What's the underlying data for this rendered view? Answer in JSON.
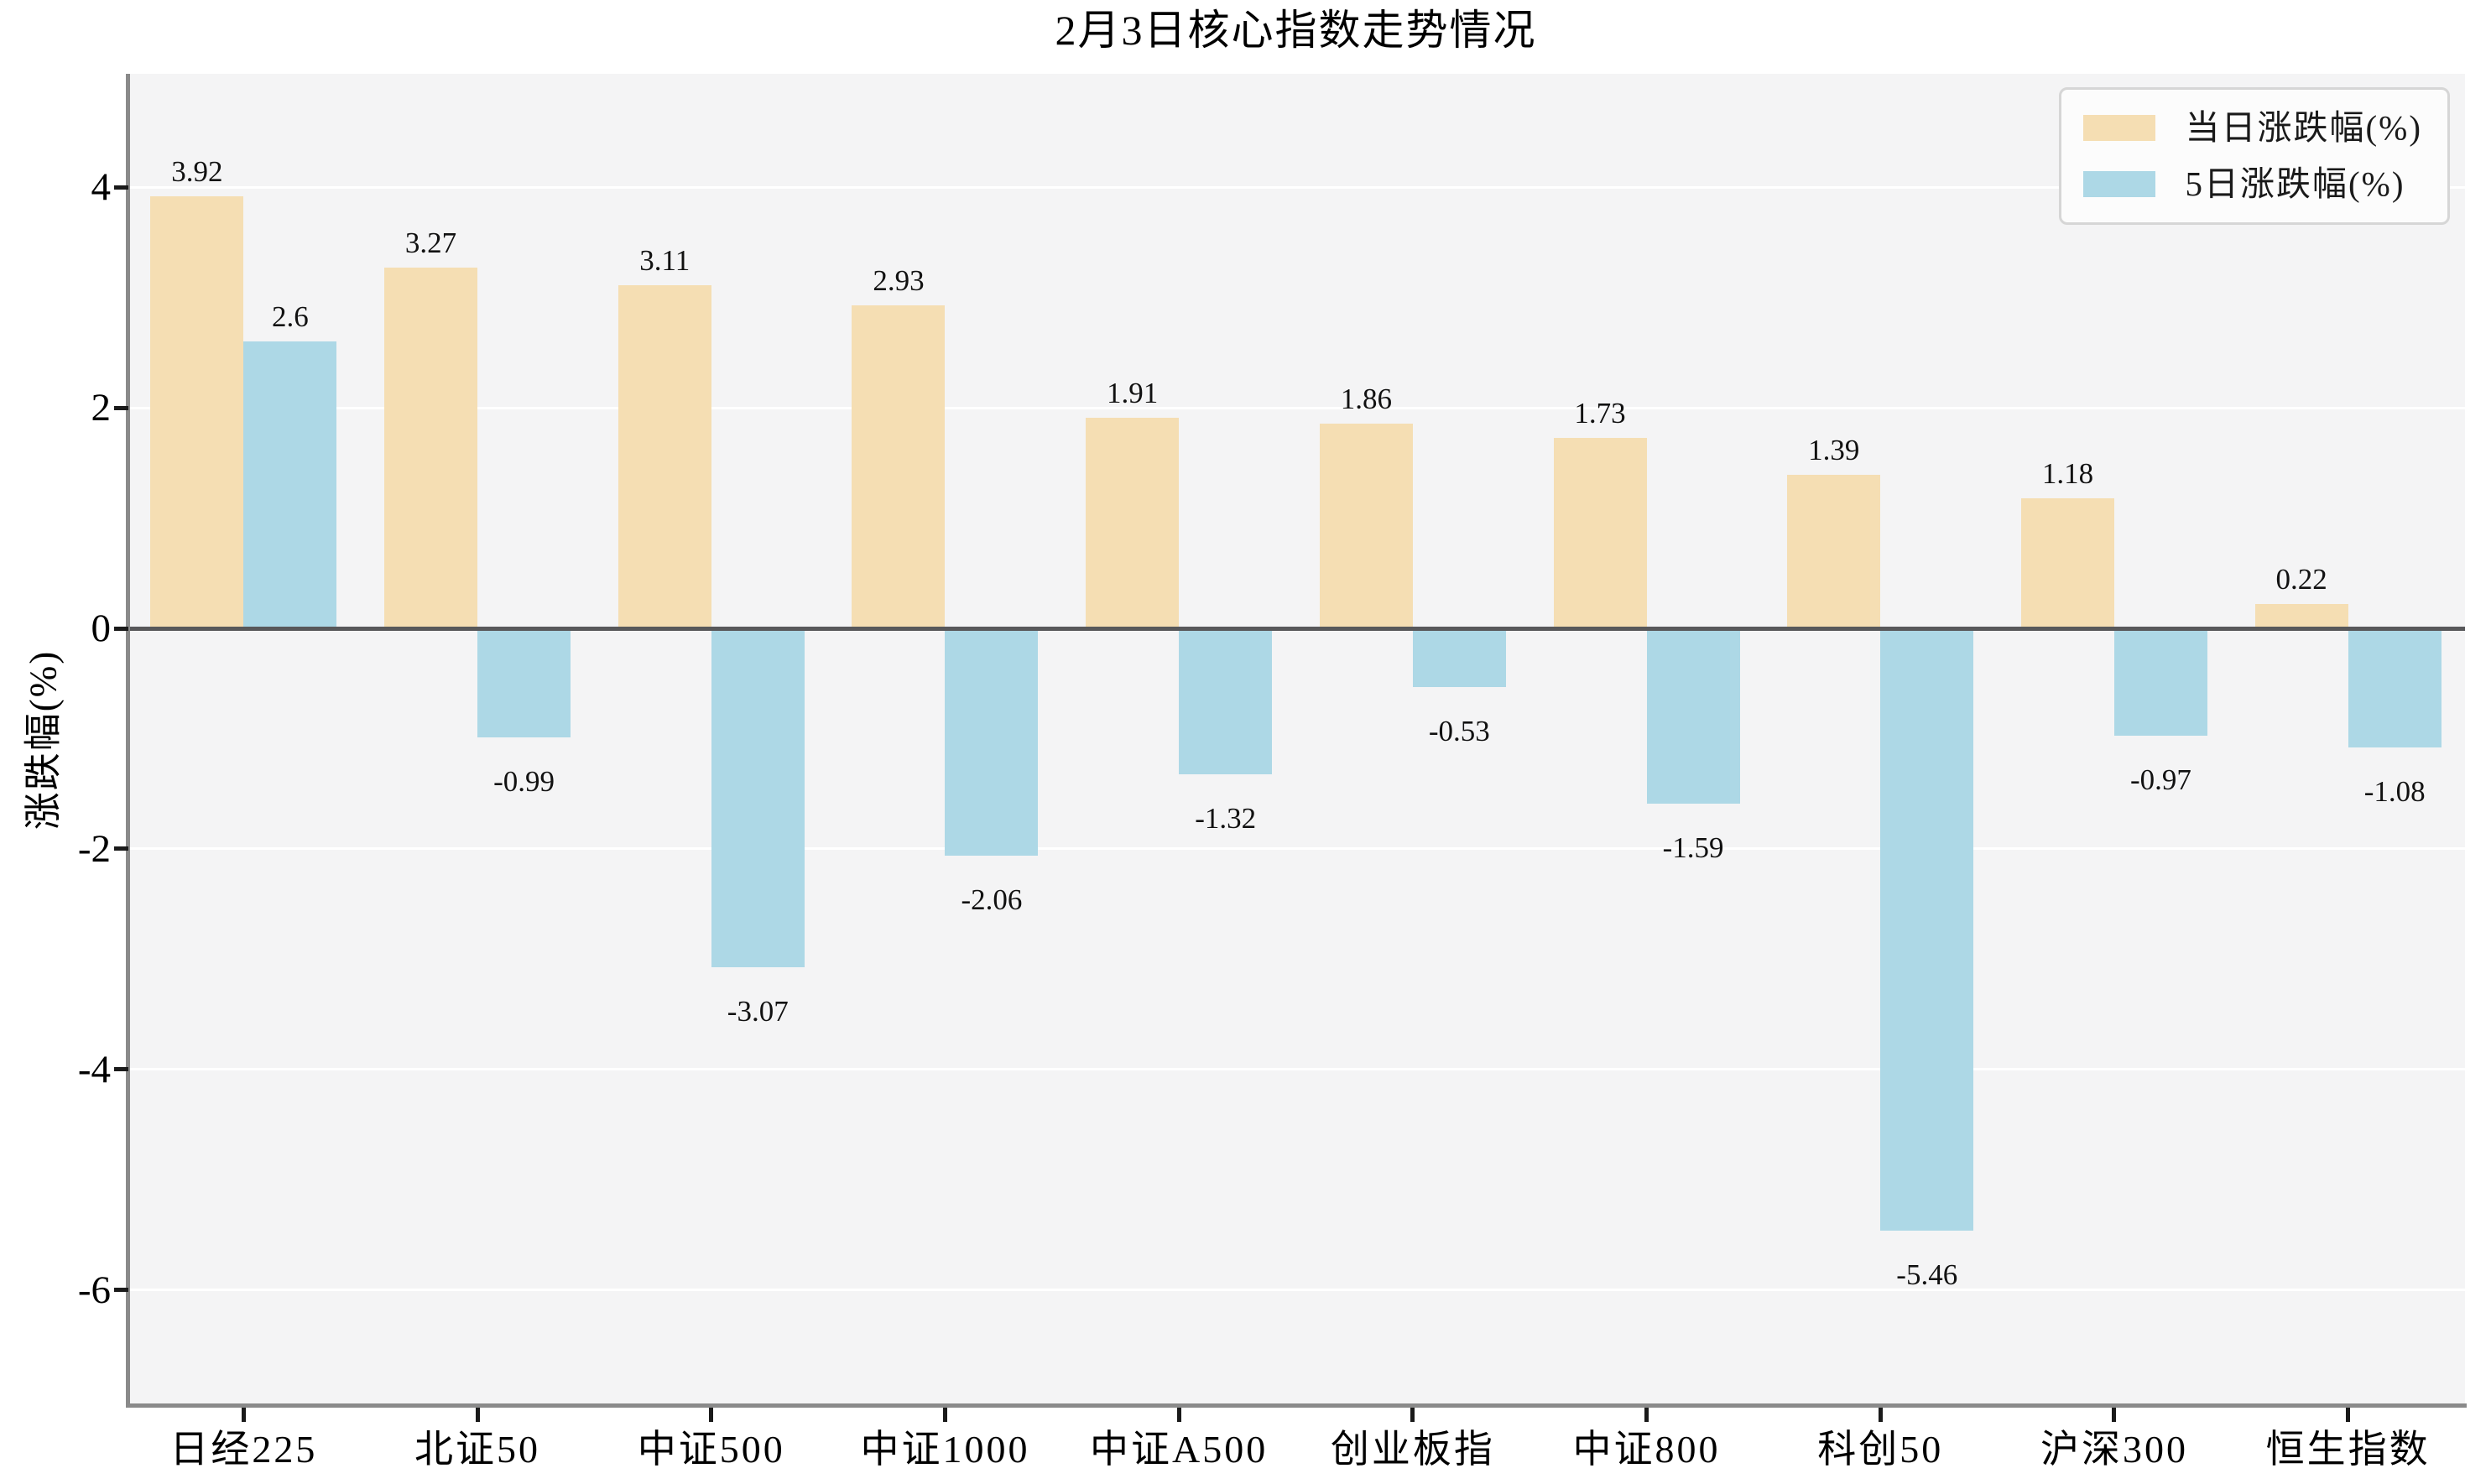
{
  "chart_title": "2月3日核心指数走势情况",
  "chart_data": {
    "type": "bar",
    "title": "2月3日核心指数走势情况",
    "categories": [
      "日经225",
      "北证50",
      "中证500",
      "中证1000",
      "中证A500",
      "创业板指",
      "中证800",
      "科创50",
      "沪深300",
      "恒生指数"
    ],
    "series": [
      {
        "name": "当日涨跌幅(%)",
        "color": "#F5DEB3",
        "values": [
          3.92,
          3.27,
          3.11,
          2.93,
          1.91,
          1.86,
          1.73,
          1.39,
          1.18,
          0.22
        ]
      },
      {
        "name": "5日涨跌幅(%)",
        "color": "#ADD8E6",
        "values": [
          2.6,
          -0.99,
          -3.07,
          -2.06,
          -1.32,
          -0.53,
          -1.59,
          -5.46,
          -0.97,
          -1.08
        ]
      }
    ],
    "xlabel": "",
    "ylabel": "涨跌幅(%)",
    "ylim": [
      -7.03,
      5.03
    ],
    "yticks": [
      4,
      2,
      0,
      -2,
      -4,
      -6
    ],
    "grid": true,
    "bar_value_labels": true,
    "legend_position": "upper right"
  },
  "style": {
    "figure_bg": "#ffffff",
    "plot_bg": "#f4f4f5",
    "grid_color": "#ffffff",
    "zero_line_color": "#58585a",
    "spine_color": "#8a8a8a",
    "tick_color": "#1a1a1a",
    "daily_series_color": "#F5DEB3",
    "five_day_series_color": "#ADD8E6"
  }
}
